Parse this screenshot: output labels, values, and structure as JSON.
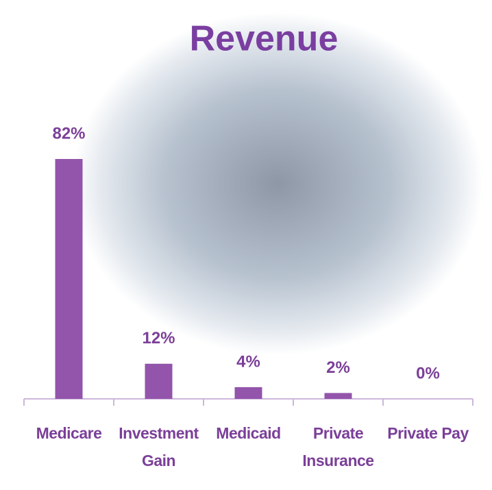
{
  "chart_data": {
    "type": "bar",
    "title": "Revenue",
    "categories": [
      "Medicare",
      "Investment Gain",
      "Medicaid",
      "Private Insurance",
      "Private Pay"
    ],
    "values": [
      82,
      12,
      4,
      2,
      0
    ],
    "value_labels": [
      "82%",
      "12%",
      "4%",
      "2%",
      "0%"
    ],
    "color": "#9354ab"
  }
}
